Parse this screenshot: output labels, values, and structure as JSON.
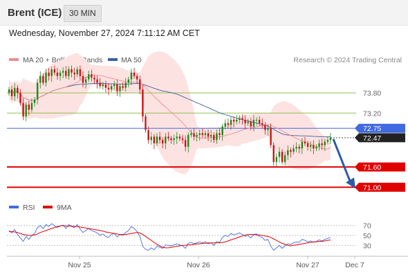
{
  "header": {
    "instrument": "Brent (ICE)",
    "timeframe": "30 MIN"
  },
  "datetime": "Wednesday, November 27, 2024 7:11:12 AM CET",
  "legend": {
    "ma20_label": "MA 20 + Bollinger Bands",
    "ma50_label": "MA 50",
    "ma20_color": "#f28c8c",
    "ma50_color": "#3a5fa8"
  },
  "copyright": "Research © 2024 Trading Central",
  "colors": {
    "up": "#1a8a1a",
    "down": "#cc1111",
    "support": "#e00000",
    "resistance": "#8bc34a",
    "current": "#4169e1",
    "band_fill": "#fde2e2",
    "arrow": "#2e5aa8",
    "rsi": "#4169e1",
    "rsi_ma": "#e00000"
  },
  "chart_data": [
    {
      "type": "candlestick",
      "x_ticks": [
        "Nov 25",
        "Nov 26",
        "Nov 27",
        "Dec 7"
      ],
      "ylim": [
        70.7,
        74.5
      ],
      "price_levels": [
        {
          "label": "73.80",
          "value": 73.8,
          "kind": "resistance"
        },
        {
          "label": "73.20",
          "value": 73.2,
          "kind": "resistance"
        },
        {
          "label": "72.75",
          "value": 72.75,
          "kind": "current"
        },
        {
          "label": "72.47",
          "value": 72.47,
          "kind": "last"
        },
        {
          "label": "71.60",
          "value": 71.6,
          "kind": "support"
        },
        {
          "label": "71.00",
          "value": 71.0,
          "kind": "support"
        }
      ],
      "close": [
        73.9,
        73.7,
        73.95,
        73.8,
        73.5,
        73.1,
        73.45,
        73.3,
        73.5,
        73.6,
        74.1,
        74.3,
        74.1,
        74.4,
        74.3,
        74.5,
        74.4,
        74.3,
        74.4,
        74.45,
        74.3,
        74.5,
        74.4,
        74.35,
        74.5,
        74.3,
        74.1,
        74.2,
        74.35,
        74.25,
        74.2,
        74.1,
        74.0,
        74.05,
        73.95,
        73.9,
        74.0,
        74.05,
        73.85,
        74.0,
        73.95,
        74.1,
        74.2,
        74.4,
        74.3,
        74.2,
        73.9,
        73.1,
        72.7,
        72.4,
        72.5,
        72.3,
        72.5,
        72.4,
        72.3,
        72.5,
        72.45,
        72.4,
        72.45,
        72.5,
        72.45,
        72.4,
        72.2,
        72.55,
        72.6,
        72.5,
        72.55,
        72.6,
        72.55,
        72.6,
        72.5,
        72.55,
        72.4,
        72.6,
        72.55,
        72.8,
        72.9,
        72.85,
        73.0,
        72.95,
        73.0,
        73.05,
        73.0,
        72.9,
        72.95,
        72.8,
        73.0,
        73.0,
        72.9,
        72.85,
        72.7,
        72.75,
        72.25,
        71.75,
        71.9,
        72.05,
        71.75,
        71.95,
        72.1,
        72.05,
        72.15,
        72.2,
        72.15,
        72.35,
        72.3,
        72.2,
        72.25,
        72.15,
        72.2,
        72.3,
        72.25,
        72.35,
        72.4,
        72.47
      ],
      "open": [
        73.8,
        73.9,
        73.7,
        73.95,
        73.8,
        73.5,
        73.1,
        73.45,
        73.3,
        73.5,
        73.6,
        74.1,
        74.3,
        74.1,
        74.4,
        74.3,
        74.5,
        74.4,
        74.3,
        74.4,
        74.45,
        74.3,
        74.5,
        74.4,
        74.35,
        74.5,
        74.3,
        74.1,
        74.2,
        74.35,
        74.25,
        74.2,
        74.1,
        74.0,
        74.05,
        73.95,
        73.9,
        74.0,
        74.05,
        73.85,
        74.0,
        73.95,
        74.1,
        74.2,
        74.4,
        74.3,
        74.2,
        73.9,
        73.1,
        72.7,
        72.4,
        72.5,
        72.3,
        72.5,
        72.4,
        72.3,
        72.5,
        72.45,
        72.4,
        72.45,
        72.5,
        72.45,
        72.4,
        72.2,
        72.55,
        72.6,
        72.5,
        72.55,
        72.6,
        72.55,
        72.6,
        72.5,
        72.55,
        72.4,
        72.6,
        72.55,
        72.8,
        72.9,
        72.85,
        73.0,
        72.95,
        73.0,
        73.05,
        73.0,
        72.9,
        72.95,
        72.8,
        73.0,
        73.0,
        72.9,
        72.85,
        72.7,
        72.75,
        72.25,
        71.75,
        71.9,
        72.05,
        71.75,
        71.95,
        72.1,
        72.05,
        72.15,
        72.2,
        72.15,
        72.35,
        72.3,
        72.2,
        72.25,
        72.15,
        72.2,
        72.3,
        72.25,
        72.35,
        72.4
      ]
    },
    {
      "type": "line",
      "legend": [
        "RSI",
        "9MA"
      ],
      "y_ticks": [
        70,
        50,
        30
      ],
      "ylim": [
        15,
        85
      ],
      "rsi": [
        60,
        55,
        62,
        52,
        45,
        38,
        48,
        42,
        50,
        54,
        66,
        70,
        64,
        72,
        68,
        74,
        70,
        66,
        69,
        71,
        64,
        72,
        68,
        66,
        72,
        63,
        56,
        60,
        64,
        60,
        58,
        55,
        50,
        53,
        48,
        46,
        52,
        54,
        47,
        52,
        50,
        56,
        60,
        68,
        64,
        58,
        48,
        28,
        22,
        20,
        25,
        21,
        28,
        26,
        24,
        31,
        30,
        29,
        31,
        33,
        31,
        29,
        24,
        34,
        36,
        33,
        35,
        37,
        35,
        37,
        33,
        35,
        30,
        38,
        36,
        46,
        50,
        48,
        54,
        51,
        53,
        55,
        52,
        48,
        50,
        45,
        52,
        53,
        48,
        46,
        40,
        42,
        28,
        20,
        25,
        30,
        24,
        29,
        33,
        32,
        35,
        37,
        36,
        42,
        40,
        37,
        39,
        36,
        38,
        41,
        39,
        42,
        44,
        46
      ],
      "rsi_ma": [
        58,
        58,
        57,
        56,
        54,
        52,
        51,
        50,
        50,
        51,
        53,
        56,
        58,
        60,
        62,
        64,
        66,
        68,
        69,
        70,
        69,
        69,
        69,
        68,
        68,
        67,
        66,
        65,
        64,
        63,
        62,
        61,
        60,
        59,
        57,
        56,
        55,
        54,
        53,
        52,
        52,
        52,
        53,
        54,
        55,
        56,
        55,
        52,
        48,
        44,
        40,
        36,
        32,
        29,
        26,
        25,
        25,
        26,
        27,
        28,
        29,
        30,
        30,
        31,
        31,
        32,
        33,
        33,
        34,
        34,
        35,
        35,
        35,
        35,
        35,
        36,
        37,
        39,
        41,
        43,
        45,
        47,
        49,
        51,
        52,
        52,
        52,
        51,
        51,
        50,
        49,
        48,
        46,
        43,
        40,
        37,
        34,
        32,
        30,
        29,
        30,
        31,
        32,
        33,
        34,
        35,
        36,
        37,
        37,
        38,
        38,
        39,
        40,
        41
      ]
    }
  ]
}
